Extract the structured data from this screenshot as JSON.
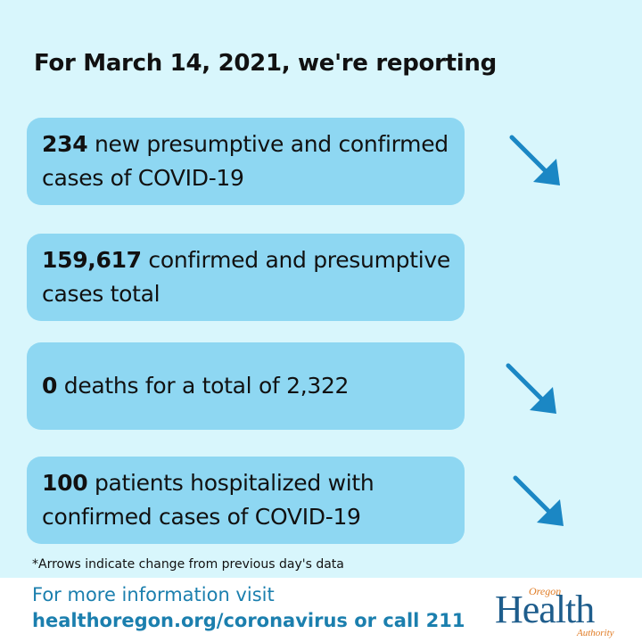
{
  "header": {
    "title": "For March 14, 2021, we're reporting"
  },
  "stats": [
    {
      "number": "234",
      "text": " new presumptive and confirmed cases of COVID-19",
      "arrow": "down-right-arrow"
    },
    {
      "number": "159,617",
      "text": " confirmed and presumptive cases total",
      "arrow": ""
    },
    {
      "number": "0",
      "text": " deaths for a total of 2,322",
      "arrow": "down-right-arrow"
    },
    {
      "number": "100",
      "text": " patients hospitalized with confirmed cases of COVID-19",
      "arrow": "down-right-arrow"
    }
  ],
  "footnote": "*Arrows indicate change from previous day's data",
  "footer": {
    "line1": "For more information visit",
    "line2": "healthoregon.org/coronavirus or call 211"
  },
  "logo": {
    "top": "Oregon",
    "main": "Health",
    "bottom": "Authority"
  },
  "colors": {
    "background": "#d8f6fc",
    "card": "#8ed7f2",
    "arrow": "#1b87c4",
    "footer_text": "#1b7fae"
  }
}
